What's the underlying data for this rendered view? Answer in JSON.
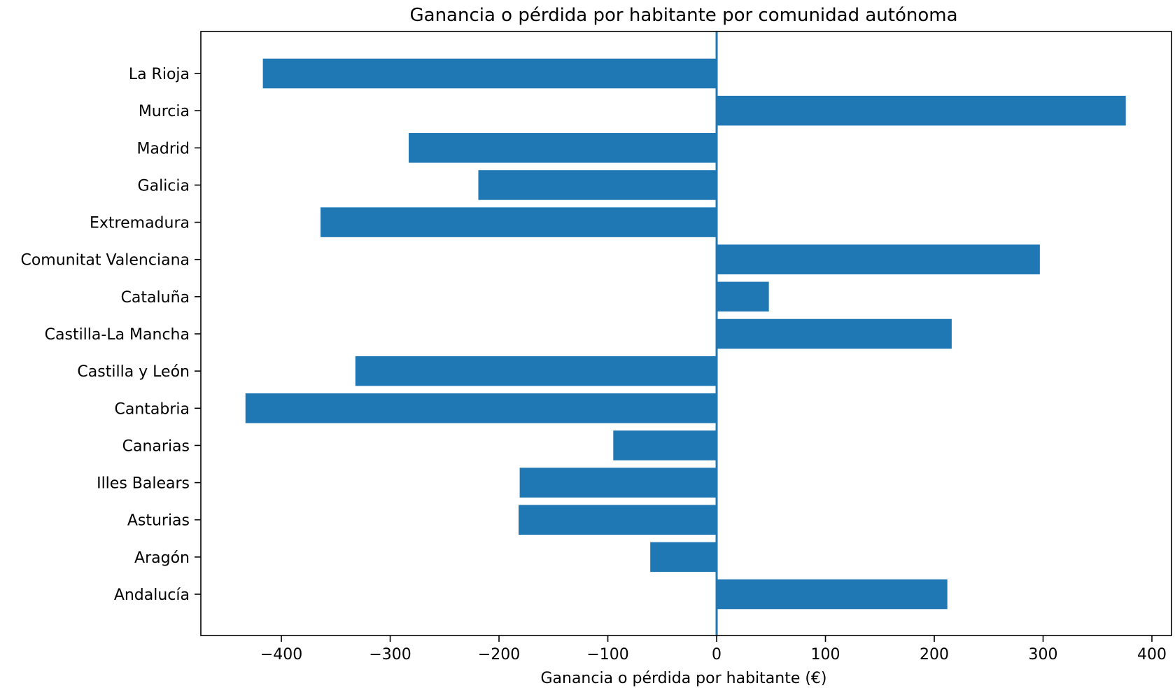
{
  "chart_data": {
    "type": "bar",
    "orientation": "horizontal",
    "title": "Ganancia o pérdida por habitante por comunidad autónoma",
    "xlabel": "Ganancia o pérdida por habitante (€)",
    "ylabel": "",
    "categories": [
      "Andalucía",
      "Aragón",
      "Asturias",
      "Illes Balears",
      "Canarias",
      "Cantabria",
      "Castilla y León",
      "Castilla-La Mancha",
      "Cataluña",
      "Comunitat Valenciana",
      "Extremadura",
      "Galicia",
      "Madrid",
      "Murcia",
      "La Rioja"
    ],
    "values": [
      212,
      -61,
      -182,
      -181,
      -95,
      -433,
      -332,
      216,
      48,
      297,
      -364,
      -219,
      -283,
      376,
      -417
    ],
    "xlim": [
      -474,
      418
    ],
    "xticks": [
      -400,
      -300,
      -200,
      -100,
      0,
      100,
      200,
      300,
      400
    ],
    "xtick_labels": [
      "−400",
      "−300",
      "−200",
      "−100",
      "0",
      "100",
      "200",
      "300",
      "400"
    ],
    "zero_line": true,
    "grid": false,
    "bar_color": "#1f77b4",
    "zero_line_color": "#1f77b4"
  }
}
